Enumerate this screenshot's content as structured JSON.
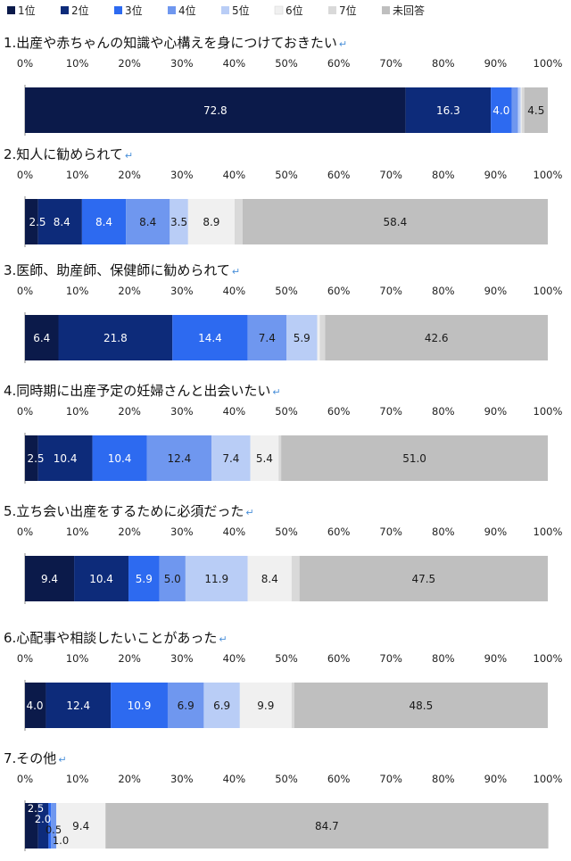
{
  "chart_data": {
    "type": "bar",
    "orientation": "horizontal",
    "stacked": true,
    "legend": {
      "placement": "top-left",
      "entries": [
        "1位",
        "2位",
        "3位",
        "4位",
        "5位",
        "6位",
        "7位",
        "未回答"
      ]
    },
    "series_colors": [
      "#0b1a4a",
      "#0d2b7a",
      "#2d6af0",
      "#6f97ef",
      "#b9cdf6",
      "#f0f0f0",
      "#d9d9d9",
      "#bfbfbf"
    ],
    "label_colors": [
      "#ffffff",
      "#ffffff",
      "#ffffff",
      "#1a1a1a",
      "#1a1a1a",
      "#1a1a1a",
      "#1a1a1a",
      "#1a1a1a"
    ],
    "xlim": [
      0,
      100
    ],
    "x_ticks": [
      "0%",
      "10%",
      "20%",
      "30%",
      "40%",
      "50%",
      "60%",
      "70%",
      "80%",
      "90%",
      "100%"
    ],
    "return_mark": "↵",
    "panels": [
      {
        "title": "1.出産や赤ちゃんの知識や心構えを身につけておきたい",
        "values": [
          72.8,
          16.3,
          4.0,
          1.2,
          0.5,
          0.2,
          0.5,
          4.5
        ],
        "labels": [
          "72.8",
          "16.3",
          "4.0",
          "",
          "",
          "",
          "",
          "4.5"
        ]
      },
      {
        "title": "2.知人に勧められて",
        "values": [
          2.5,
          8.4,
          8.4,
          8.4,
          3.5,
          8.9,
          1.5,
          58.4
        ],
        "labels": [
          "2.5",
          "8.4",
          "8.4",
          "8.4",
          "3.5",
          "8.9",
          "",
          "58.4"
        ]
      },
      {
        "title": "3.医師、助産師、保健師に勧められて",
        "values": [
          6.4,
          21.8,
          14.4,
          7.4,
          5.9,
          0.5,
          1.0,
          42.6
        ],
        "labels": [
          "6.4",
          "21.8",
          "14.4",
          "7.4",
          "5.9",
          "",
          "",
          "42.6"
        ]
      },
      {
        "title": "4.同時期に出産予定の妊婦さんと出会いたい",
        "values": [
          2.5,
          10.4,
          10.4,
          12.4,
          7.4,
          5.4,
          0.5,
          51.0
        ],
        "labels": [
          "2.5",
          "10.4",
          "10.4",
          "12.4",
          "7.4",
          "5.4",
          "",
          "51.0"
        ]
      },
      {
        "title": "5.立ち会い出産をするために必須だった",
        "values": [
          9.4,
          10.4,
          5.9,
          5.0,
          11.9,
          8.4,
          1.5,
          47.5
        ],
        "labels": [
          "9.4",
          "10.4",
          "5.9",
          "5.0",
          "11.9",
          "8.4",
          "",
          "47.5"
        ]
      },
      {
        "title": "6.心配事や相談したいことがあった",
        "values": [
          4.0,
          12.4,
          10.9,
          6.9,
          6.9,
          9.9,
          0.5,
          48.5
        ],
        "labels": [
          "4.0",
          "12.4",
          "10.9",
          "6.9",
          "6.9",
          "9.9",
          "",
          "48.5"
        ]
      },
      {
        "title": "7.その他",
        "values": [
          2.5,
          2.0,
          0.5,
          1.0,
          0.0,
          9.4,
          0.0,
          84.7
        ],
        "labels": [
          "2.5",
          "2.0",
          "0.5",
          "1.0",
          "",
          "9.4",
          "",
          "84.7"
        ]
      }
    ]
  }
}
